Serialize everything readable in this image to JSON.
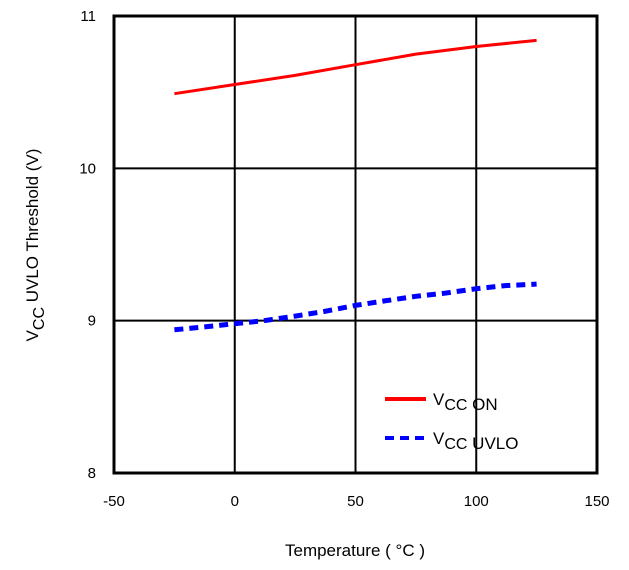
{
  "chart_data": {
    "type": "line",
    "title": "",
    "xlabel": "Temperature ( °C )",
    "ylabel": {
      "prefix": "V",
      "subscript": "CC",
      "suffix": " UVLO Threshold (V)"
    },
    "xlim": [
      -50,
      150
    ],
    "ylim": [
      8,
      11
    ],
    "x_ticks": [
      -50,
      0,
      50,
      100,
      150
    ],
    "y_ticks": [
      8,
      9,
      10,
      11
    ],
    "grid": true,
    "legend_position": "bottom-right",
    "series": [
      {
        "name": {
          "prefix": "V",
          "subscript": "CC",
          "suffix": " ON"
        },
        "color": "#ff0000",
        "style": "solid",
        "x": [
          -25,
          0,
          25,
          50,
          75,
          100,
          125
        ],
        "y": [
          10.49,
          10.55,
          10.61,
          10.68,
          10.75,
          10.8,
          10.84
        ]
      },
      {
        "name": {
          "prefix": "V",
          "subscript": "CC",
          "suffix": " UVLO"
        },
        "color": "#0000ff",
        "style": "dashed",
        "x": [
          -25,
          -12,
          0,
          12,
          25,
          37,
          50,
          62,
          75,
          87,
          100,
          112,
          125
        ],
        "y": [
          8.94,
          8.96,
          8.98,
          9.0,
          9.03,
          9.06,
          9.1,
          9.13,
          9.16,
          9.18,
          9.21,
          9.23,
          9.24
        ]
      }
    ]
  }
}
